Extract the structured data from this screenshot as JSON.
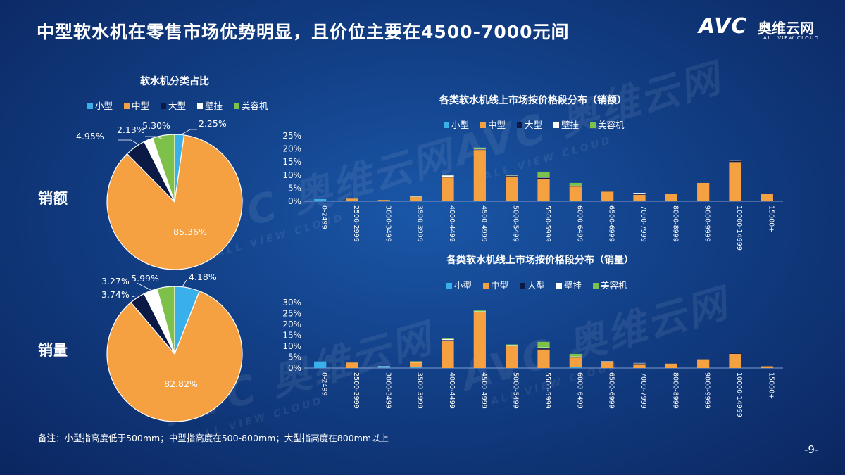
{
  "title": "中型软水机在零售市场优势明显，且价位主要在4500-7000元间",
  "logo": {
    "mark": "AVC",
    "cn": "奥维云网",
    "en": "ALL VIEW CLOUD"
  },
  "watermark": {
    "main": "AVC 奥维云网",
    "sub": "ALL VIEW CLOUD"
  },
  "row_labels": {
    "sales_value": "销额",
    "sales_volume": "销量"
  },
  "note": "备注：小型指高度低于500mm；中型指高度在500-800mm；大型指高度在800mm以上",
  "page_number": "-9-",
  "colors": {
    "小型": "#3ab0ea",
    "中型": "#f5a142",
    "大型": "#0a1a45",
    "壁挂": "#ffffff",
    "美容机": "#7ec14a"
  },
  "chart_data": [
    {
      "type": "pie",
      "title": "软水机分类占比",
      "row": "销额",
      "legend_placement": "top",
      "labels": [
        "小型",
        "中型",
        "大型",
        "壁挂",
        "美容机"
      ],
      "values": [
        2.25,
        85.36,
        4.95,
        2.13,
        5.3
      ],
      "value_labels": [
        "2.25%",
        "85.36%",
        "4.95%",
        "2.13%",
        "5.30%"
      ]
    },
    {
      "type": "pie",
      "row": "销量",
      "labels": [
        "小型",
        "中型",
        "大型",
        "壁挂",
        "美容机"
      ],
      "values": [
        5.99,
        82.82,
        3.74,
        3.27,
        4.18
      ],
      "value_labels": [
        "5.99%",
        "82.82%",
        "3.74%",
        "3.27%",
        "4.18%"
      ]
    },
    {
      "type": "bar",
      "stacked": true,
      "title": "各类软水机线上市场按价格段分布（销额）",
      "legend_placement": "top",
      "categories": [
        "0-2499",
        "2500-2999",
        "3000-3499",
        "3500-3999",
        "4000-4499",
        "4500-4999",
        "5000-5499",
        "5500-5999",
        "6000-6499",
        "6500-6999",
        "7000-7999",
        "8000-8999",
        "9000-9999",
        "10000-14999",
        "15000+"
      ],
      "ylim": [
        0,
        25
      ],
      "yticks": [
        "0%",
        "5%",
        "10%",
        "15%",
        "20%",
        "25%"
      ],
      "series": [
        {
          "name": "小型",
          "values": [
            0.8,
            0,
            0.2,
            0.2,
            0.1,
            0.1,
            0,
            0,
            0.1,
            0,
            0,
            0,
            0,
            0,
            0
          ]
        },
        {
          "name": "中型",
          "values": [
            0,
            1.0,
            0.3,
            1.5,
            9.0,
            19.5,
            9.5,
            8.5,
            5.5,
            3.7,
            2.5,
            2.8,
            7.0,
            15.0,
            2.8
          ]
        },
        {
          "name": "大型",
          "values": [
            0,
            0,
            0,
            0,
            0.2,
            0.2,
            0.3,
            0.5,
            0.2,
            0.1,
            0.4,
            0,
            0,
            0.5,
            0
          ]
        },
        {
          "name": "壁挂",
          "values": [
            0,
            0,
            0,
            0.1,
            0.6,
            0.2,
            0.1,
            0.3,
            0.2,
            0.1,
            0.3,
            0,
            0,
            0.3,
            0
          ]
        },
        {
          "name": "美容机",
          "values": [
            0,
            0,
            0,
            0.3,
            0.3,
            0.5,
            0.2,
            2.0,
            1.0,
            0,
            0,
            0,
            0,
            0,
            0
          ]
        }
      ]
    },
    {
      "type": "bar",
      "stacked": true,
      "title": "各类软水机线上市场按价格段分布（销量）",
      "legend_placement": "top",
      "categories": [
        "0-2499",
        "2500-2999",
        "3000-3499",
        "3500-3999",
        "4000-4499",
        "4500-4999",
        "5000-5499",
        "5500-5999",
        "6000-6499",
        "6500-6999",
        "7000-7999",
        "8000-8999",
        "9000-9999",
        "10000-14999",
        "15000+"
      ],
      "ylim": [
        0,
        30
      ],
      "yticks": [
        "0%",
        "5%",
        "10%",
        "15%",
        "20%",
        "25%",
        "30%"
      ],
      "series": [
        {
          "name": "小型",
          "values": [
            3.0,
            0,
            0.3,
            0.3,
            0,
            0,
            0,
            0,
            0.3,
            0,
            0,
            0,
            0,
            0,
            0
          ]
        },
        {
          "name": "中型",
          "values": [
            0,
            2.5,
            0.3,
            2.3,
            12.5,
            25.5,
            10.0,
            8.5,
            4.5,
            3.0,
            1.8,
            2.0,
            4.0,
            6.5,
            0.8
          ]
        },
        {
          "name": "大型",
          "values": [
            0,
            0,
            0,
            0,
            0.3,
            0.2,
            0.3,
            0.5,
            0.3,
            0.1,
            0.3,
            0,
            0,
            0.4,
            0
          ]
        },
        {
          "name": "壁挂",
          "values": [
            0,
            0,
            0.2,
            0.1,
            0.5,
            0.3,
            0.2,
            0.5,
            0.2,
            0.1,
            0.2,
            0,
            0,
            0.2,
            0
          ]
        },
        {
          "name": "美容机",
          "values": [
            0,
            0,
            0,
            0.4,
            0.3,
            0.4,
            0.3,
            2.5,
            1.2,
            0,
            0,
            0,
            0,
            0,
            0
          ]
        }
      ]
    }
  ]
}
